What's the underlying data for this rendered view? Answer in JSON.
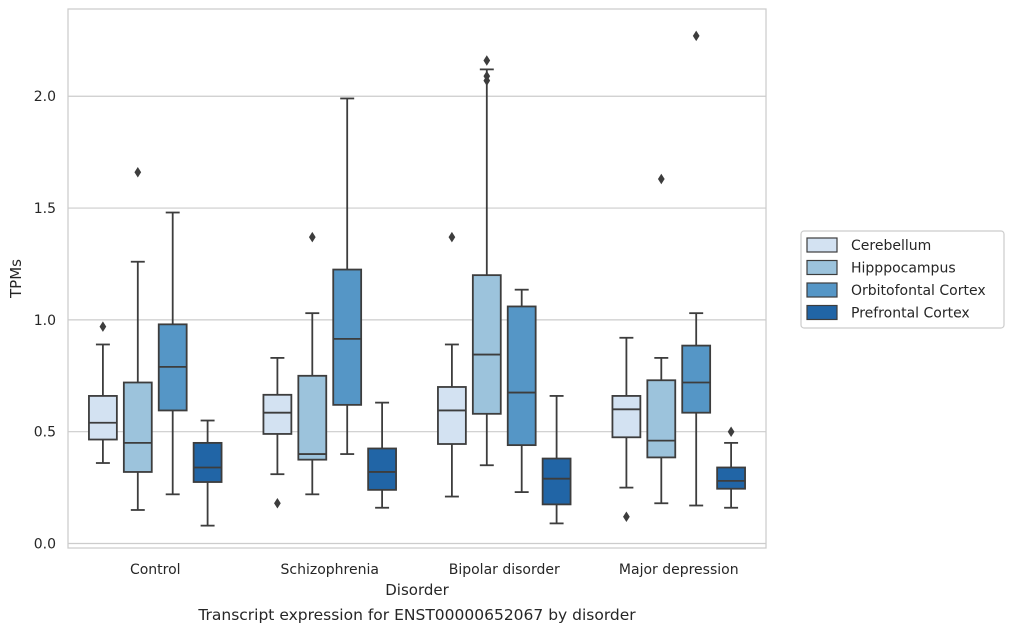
{
  "caption": "Transcript expression for ENST00000652067 by disorder",
  "chart_data": {
    "type": "box",
    "xlabel": "Disorder",
    "ylabel": "TPMs",
    "ylim": [
      -0.02,
      2.39
    ],
    "yticks": [
      0.0,
      0.5,
      1.0,
      1.5,
      2.0
    ],
    "ytick_labels": [
      "0.0",
      "0.5",
      "1.0",
      "1.5",
      "2.0"
    ],
    "grid": "horizontal",
    "legend_position": "right",
    "categories": [
      "Control",
      "Schizophrenia",
      "Bipolar disorder",
      "Major depression"
    ],
    "series": [
      {
        "name": "Cerebellum",
        "color": "#d3e2f2",
        "boxes": [
          {
            "whislo": 0.36,
            "q1": 0.465,
            "med": 0.54,
            "q3": 0.66,
            "whishi": 0.89,
            "fliers": [
              0.97
            ]
          },
          {
            "whislo": 0.31,
            "q1": 0.49,
            "med": 0.585,
            "q3": 0.665,
            "whishi": 0.83,
            "fliers": [
              0.18
            ]
          },
          {
            "whislo": 0.21,
            "q1": 0.445,
            "med": 0.595,
            "q3": 0.7,
            "whishi": 0.89,
            "fliers": [
              1.37
            ]
          },
          {
            "whislo": 0.25,
            "q1": 0.475,
            "med": 0.6,
            "q3": 0.66,
            "whishi": 0.92,
            "fliers": [
              0.12
            ]
          }
        ]
      },
      {
        "name": "Hipppocampus",
        "color": "#9cc3dc",
        "boxes": [
          {
            "whislo": 0.15,
            "q1": 0.32,
            "med": 0.45,
            "q3": 0.72,
            "whishi": 1.26,
            "fliers": [
              1.66
            ]
          },
          {
            "whislo": 0.22,
            "q1": 0.375,
            "med": 0.4,
            "q3": 0.75,
            "whishi": 1.03,
            "fliers": [
              1.37
            ]
          },
          {
            "whislo": 0.35,
            "q1": 0.58,
            "med": 0.845,
            "q3": 1.2,
            "whishi": 2.12,
            "fliers": [
              2.07,
              2.09,
              2.16
            ]
          },
          {
            "whislo": 0.18,
            "q1": 0.385,
            "med": 0.46,
            "q3": 0.73,
            "whishi": 0.83,
            "fliers": [
              1.63
            ]
          }
        ]
      },
      {
        "name": "Orbitofontal Cortex",
        "color": "#5596c6",
        "boxes": [
          {
            "whislo": 0.22,
            "q1": 0.595,
            "med": 0.79,
            "q3": 0.98,
            "whishi": 1.48,
            "fliers": []
          },
          {
            "whislo": 0.4,
            "q1": 0.62,
            "med": 0.915,
            "q3": 1.225,
            "whishi": 1.99,
            "fliers": []
          },
          {
            "whislo": 0.23,
            "q1": 0.44,
            "med": 0.675,
            "q3": 1.06,
            "whishi": 1.135,
            "fliers": []
          },
          {
            "whislo": 0.17,
            "q1": 0.585,
            "med": 0.72,
            "q3": 0.885,
            "whishi": 1.03,
            "fliers": [
              2.27
            ]
          }
        ]
      },
      {
        "name": "Prefrontal Cortex",
        "color": "#2165a6",
        "boxes": [
          {
            "whislo": 0.08,
            "q1": 0.275,
            "med": 0.34,
            "q3": 0.45,
            "whishi": 0.55,
            "fliers": []
          },
          {
            "whislo": 0.16,
            "q1": 0.24,
            "med": 0.32,
            "q3": 0.425,
            "whishi": 0.63,
            "fliers": []
          },
          {
            "whislo": 0.09,
            "q1": 0.175,
            "med": 0.29,
            "q3": 0.38,
            "whishi": 0.66,
            "fliers": []
          },
          {
            "whislo": 0.16,
            "q1": 0.245,
            "med": 0.28,
            "q3": 0.34,
            "whishi": 0.45,
            "fliers": [
              0.5
            ]
          }
        ]
      }
    ]
  }
}
